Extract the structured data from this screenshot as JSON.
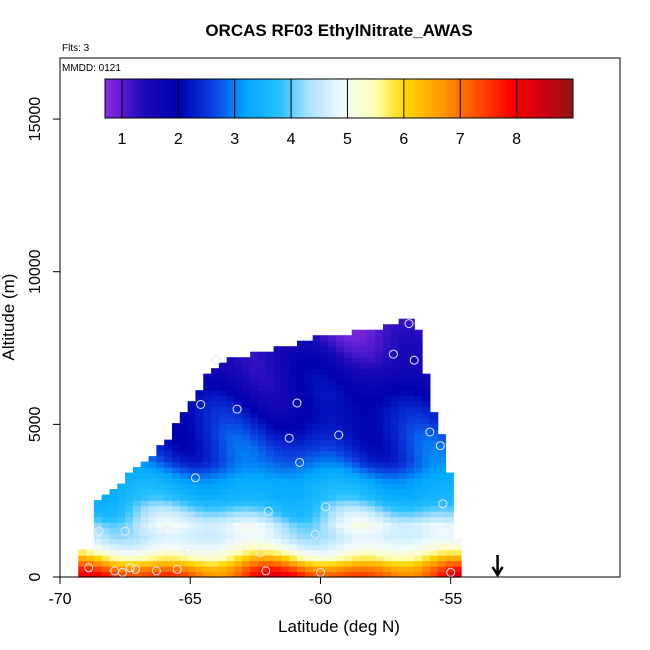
{
  "chart_data": {
    "type": "heatmap",
    "title": "ORCAS RF03 EthylNitrate_AWAS",
    "flights_note": "Flts: 3",
    "date_note": "MMDD: 0121",
    "xlabel": "Latitude (deg N)",
    "ylabel": "Altitude (m)",
    "xlim": [
      -70,
      -48.5
    ],
    "ylim": [
      0,
      17000
    ],
    "xticks": [
      -70,
      -65,
      -60,
      -55
    ],
    "yticks": [
      0,
      5000,
      10000,
      15000
    ],
    "colorbar": {
      "range": [
        0.7,
        9.0
      ],
      "ticks": [
        1,
        2,
        3,
        4,
        5,
        6,
        7,
        8
      ],
      "stops": [
        {
          "v": 0.7,
          "color": "#8a2be2"
        },
        {
          "v": 1.4,
          "color": "#1a0ab8"
        },
        {
          "v": 2.0,
          "color": "#0000b0"
        },
        {
          "v": 2.6,
          "color": "#0a3ee0"
        },
        {
          "v": 3.2,
          "color": "#00a8ff"
        },
        {
          "v": 3.8,
          "color": "#28c0ff"
        },
        {
          "v": 4.3,
          "color": "#a8e0ff"
        },
        {
          "v": 4.9,
          "color": "#f0faff"
        },
        {
          "v": 5.5,
          "color": "#ffffb0"
        },
        {
          "v": 6.0,
          "color": "#ffd800"
        },
        {
          "v": 6.6,
          "color": "#ffa000"
        },
        {
          "v": 7.3,
          "color": "#ff5000"
        },
        {
          "v": 7.9,
          "color": "#ff0000"
        },
        {
          "v": 8.5,
          "color": "#c80010"
        },
        {
          "v": 9.0,
          "color": "#901818"
        }
      ]
    },
    "arrow_marker_lat": -53.2,
    "boundary_top": [
      [
        -69.0,
        2200
      ],
      [
        -68.0,
        2800
      ],
      [
        -67.0,
        3500
      ],
      [
        -66.0,
        4300
      ],
      [
        -65.0,
        5600
      ],
      [
        -64.2,
        6700
      ],
      [
        -63.5,
        7100
      ],
      [
        -62.0,
        7300
      ],
      [
        -60.0,
        7800
      ],
      [
        -58.0,
        8000
      ],
      [
        -57.0,
        8200
      ],
      [
        -56.8,
        8500
      ],
      [
        -56.3,
        8200
      ],
      [
        -55.7,
        5500
      ],
      [
        -55.2,
        4300
      ],
      [
        -55.0,
        3000
      ],
      [
        -54.7,
        1200
      ]
    ],
    "boundary_bottom": [
      [
        -54.7,
        0
      ],
      [
        -69.3,
        0
      ]
    ],
    "profile_samples": [
      {
        "alt": 0,
        "lo": 6.6,
        "hi": 8.5
      },
      {
        "alt": 300,
        "lo": 6.1,
        "hi": 7.7
      },
      {
        "alt": 600,
        "lo": 5.0,
        "hi": 6.6
      },
      {
        "alt": 900,
        "lo": 4.6,
        "hi": 5.5
      },
      {
        "alt": 1300,
        "lo": 4.2,
        "hi": 5.0
      },
      {
        "alt": 1700,
        "lo": 4.0,
        "hi": 5.3
      },
      {
        "alt": 2100,
        "lo": 3.5,
        "hi": 4.8
      },
      {
        "alt": 2600,
        "lo": 3.2,
        "hi": 3.9
      },
      {
        "alt": 3200,
        "lo": 3.0,
        "hi": 3.5
      },
      {
        "alt": 3800,
        "lo": 2.2,
        "hi": 3.2
      },
      {
        "alt": 4500,
        "lo": 1.9,
        "hi": 2.9
      },
      {
        "alt": 5200,
        "lo": 1.7,
        "hi": 2.6
      },
      {
        "alt": 6000,
        "lo": 1.4,
        "hi": 2.4
      },
      {
        "alt": 7000,
        "lo": 1.1,
        "hi": 2.0
      },
      {
        "alt": 8000,
        "lo": 0.8,
        "hi": 1.5
      },
      {
        "alt": 8600,
        "lo": 0.8,
        "hi": 1.1
      }
    ],
    "sample_points": [
      {
        "lat": -56.6,
        "alt": 8300
      },
      {
        "lat": -57.2,
        "alt": 7300
      },
      {
        "lat": -56.4,
        "alt": 7100
      },
      {
        "lat": -64.0,
        "alt": 7100
      },
      {
        "lat": -64.6,
        "alt": 5650
      },
      {
        "lat": -63.2,
        "alt": 5500
      },
      {
        "lat": -60.9,
        "alt": 5700
      },
      {
        "lat": -61.2,
        "alt": 4550
      },
      {
        "lat": -59.3,
        "alt": 4650
      },
      {
        "lat": -55.8,
        "alt": 4750
      },
      {
        "lat": -55.4,
        "alt": 4300
      },
      {
        "lat": -60.8,
        "alt": 3750
      },
      {
        "lat": -64.8,
        "alt": 3250
      },
      {
        "lat": -62.0,
        "alt": 2150
      },
      {
        "lat": -59.8,
        "alt": 2300
      },
      {
        "lat": -55.3,
        "alt": 2400
      },
      {
        "lat": -68.5,
        "alt": 1500
      },
      {
        "lat": -67.5,
        "alt": 1500
      },
      {
        "lat": -66.8,
        "alt": 1500
      },
      {
        "lat": -65.9,
        "alt": 1500
      },
      {
        "lat": -60.2,
        "alt": 1400
      },
      {
        "lat": -65.1,
        "alt": 850
      },
      {
        "lat": -62.3,
        "alt": 800
      },
      {
        "lat": -68.9,
        "alt": 300
      },
      {
        "lat": -67.9,
        "alt": 200
      },
      {
        "lat": -67.6,
        "alt": 150
      },
      {
        "lat": -67.1,
        "alt": 250
      },
      {
        "lat": -66.3,
        "alt": 200
      },
      {
        "lat": -65.5,
        "alt": 250
      },
      {
        "lat": -62.1,
        "alt": 200
      },
      {
        "lat": -60.0,
        "alt": 150
      },
      {
        "lat": -55.0,
        "alt": 150
      },
      {
        "lat": -67.3,
        "alt": 300
      }
    ]
  }
}
